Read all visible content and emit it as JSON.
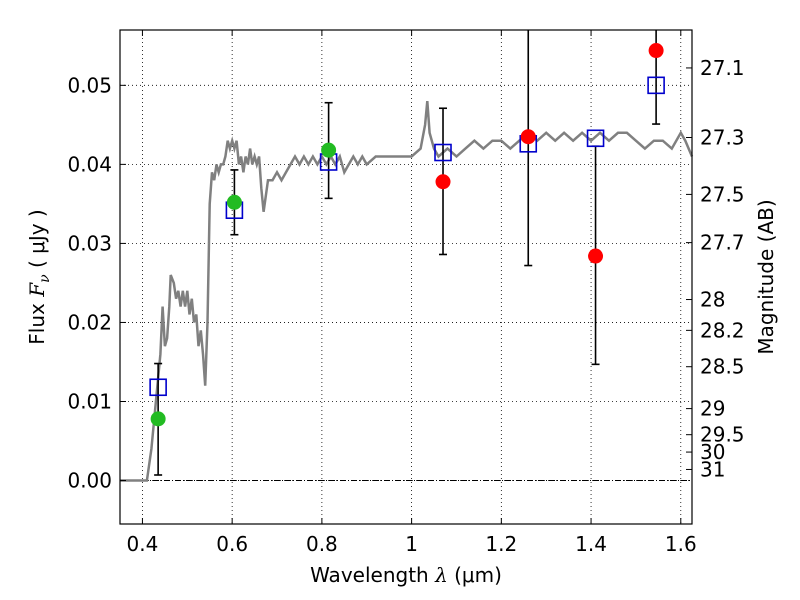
{
  "chart_data": {
    "type": "scatter",
    "xlabel": {
      "prefix": "Wavelength  ",
      "symbol": "λ",
      "unit": " (μm)"
    },
    "ylabel": {
      "prefix": "Flux  ",
      "symbol": "F",
      "subscript": "ν",
      "unit": "  ( μJy )"
    },
    "ylabel_right": "Magnitude (AB)",
    "xlim": [
      0.35,
      1.625
    ],
    "ylim": [
      -0.0055,
      0.057
    ],
    "x_ticks": [
      {
        "value": 0.4,
        "label": "0.4"
      },
      {
        "value": 0.6,
        "label": "0.6"
      },
      {
        "value": 0.8,
        "label": "0.8"
      },
      {
        "value": 1.0,
        "label": "1"
      },
      {
        "value": 1.2,
        "label": "1.2"
      },
      {
        "value": 1.4,
        "label": "1.4"
      },
      {
        "value": 1.6,
        "label": "1.6"
      }
    ],
    "y_ticks": [
      {
        "value": 0.0,
        "label": "0.00"
      },
      {
        "value": 0.01,
        "label": "0.01"
      },
      {
        "value": 0.02,
        "label": "0.02"
      },
      {
        "value": 0.03,
        "label": "0.03"
      },
      {
        "value": 0.04,
        "label": "0.04"
      },
      {
        "value": 0.05,
        "label": "0.05"
      }
    ],
    "right_ticks": [
      {
        "label": "27.1",
        "flux": 0.0522
      },
      {
        "label": "27.3",
        "flux": 0.0434
      },
      {
        "label": "27.5",
        "flux": 0.0362
      },
      {
        "label": "27.7",
        "flux": 0.0301
      },
      {
        "label": "28",
        "flux": 0.0229
      },
      {
        "label": "28.2",
        "flux": 0.019
      },
      {
        "label": "28.5",
        "flux": 0.0144
      },
      {
        "label": "29",
        "flux": 0.0091
      },
      {
        "label": "29.5",
        "flux": 0.0058
      },
      {
        "label": "30",
        "flux": 0.0036
      },
      {
        "label": "31",
        "flux": 0.0014
      }
    ],
    "grid": true,
    "zero_line": 0.0,
    "series": [
      {
        "kind": "line",
        "color": "#808080",
        "points": [
          [
            0.35,
            0.0
          ],
          [
            0.4,
            0.0
          ],
          [
            0.41,
            0.0
          ],
          [
            0.42,
            0.004
          ],
          [
            0.43,
            0.01
          ],
          [
            0.44,
            0.016
          ],
          [
            0.445,
            0.022
          ],
          [
            0.45,
            0.017
          ],
          [
            0.455,
            0.018
          ],
          [
            0.46,
            0.022
          ],
          [
            0.463,
            0.026
          ],
          [
            0.47,
            0.025
          ],
          [
            0.475,
            0.023
          ],
          [
            0.48,
            0.024
          ],
          [
            0.485,
            0.022
          ],
          [
            0.49,
            0.024
          ],
          [
            0.495,
            0.022
          ],
          [
            0.5,
            0.024
          ],
          [
            0.505,
            0.021
          ],
          [
            0.51,
            0.023
          ],
          [
            0.515,
            0.02
          ],
          [
            0.52,
            0.021
          ],
          [
            0.525,
            0.017
          ],
          [
            0.53,
            0.019
          ],
          [
            0.535,
            0.016
          ],
          [
            0.54,
            0.012
          ],
          [
            0.545,
            0.02
          ],
          [
            0.55,
            0.035
          ],
          [
            0.555,
            0.039
          ],
          [
            0.56,
            0.038
          ],
          [
            0.565,
            0.04
          ],
          [
            0.57,
            0.039
          ],
          [
            0.575,
            0.04
          ],
          [
            0.58,
            0.04
          ],
          [
            0.585,
            0.041
          ],
          [
            0.59,
            0.043
          ],
          [
            0.595,
            0.042
          ],
          [
            0.6,
            0.043
          ],
          [
            0.605,
            0.042
          ],
          [
            0.61,
            0.043
          ],
          [
            0.615,
            0.04
          ],
          [
            0.62,
            0.041
          ],
          [
            0.625,
            0.039
          ],
          [
            0.63,
            0.041
          ],
          [
            0.635,
            0.04
          ],
          [
            0.64,
            0.042
          ],
          [
            0.645,
            0.04
          ],
          [
            0.65,
            0.041
          ],
          [
            0.655,
            0.04
          ],
          [
            0.66,
            0.041
          ],
          [
            0.665,
            0.037
          ],
          [
            0.67,
            0.034
          ],
          [
            0.675,
            0.036
          ],
          [
            0.68,
            0.038
          ],
          [
            0.69,
            0.038
          ],
          [
            0.7,
            0.039
          ],
          [
            0.71,
            0.038
          ],
          [
            0.72,
            0.039
          ],
          [
            0.73,
            0.04
          ],
          [
            0.74,
            0.041
          ],
          [
            0.75,
            0.04
          ],
          [
            0.76,
            0.041
          ],
          [
            0.77,
            0.04
          ],
          [
            0.78,
            0.041
          ],
          [
            0.79,
            0.04
          ],
          [
            0.8,
            0.041
          ],
          [
            0.81,
            0.04
          ],
          [
            0.82,
            0.041
          ],
          [
            0.83,
            0.04
          ],
          [
            0.84,
            0.041
          ],
          [
            0.85,
            0.039
          ],
          [
            0.86,
            0.04
          ],
          [
            0.87,
            0.041
          ],
          [
            0.88,
            0.04
          ],
          [
            0.89,
            0.041
          ],
          [
            0.9,
            0.04
          ],
          [
            0.92,
            0.041
          ],
          [
            0.94,
            0.041
          ],
          [
            0.96,
            0.041
          ],
          [
            0.98,
            0.041
          ],
          [
            1.0,
            0.041
          ],
          [
            1.02,
            0.042
          ],
          [
            1.03,
            0.045
          ],
          [
            1.035,
            0.048
          ],
          [
            1.04,
            0.044
          ],
          [
            1.05,
            0.042
          ],
          [
            1.06,
            0.041
          ],
          [
            1.08,
            0.042
          ],
          [
            1.1,
            0.041
          ],
          [
            1.12,
            0.042
          ],
          [
            1.14,
            0.043
          ],
          [
            1.16,
            0.042
          ],
          [
            1.18,
            0.043
          ],
          [
            1.2,
            0.043
          ],
          [
            1.22,
            0.042
          ],
          [
            1.24,
            0.043
          ],
          [
            1.26,
            0.044
          ],
          [
            1.28,
            0.043
          ],
          [
            1.3,
            0.044
          ],
          [
            1.32,
            0.043
          ],
          [
            1.34,
            0.044
          ],
          [
            1.36,
            0.043
          ],
          [
            1.38,
            0.044
          ],
          [
            1.4,
            0.043
          ],
          [
            1.42,
            0.044
          ],
          [
            1.44,
            0.043
          ],
          [
            1.46,
            0.044
          ],
          [
            1.48,
            0.044
          ],
          [
            1.5,
            0.043
          ],
          [
            1.52,
            0.042
          ],
          [
            1.54,
            0.043
          ],
          [
            1.56,
            0.043
          ],
          [
            1.58,
            0.042
          ],
          [
            1.6,
            0.044
          ],
          [
            1.61,
            0.043
          ],
          [
            1.625,
            0.041
          ]
        ]
      },
      {
        "kind": "open-square",
        "color": "#0000cc",
        "points": [
          [
            0.435,
            0.0118
          ],
          [
            0.605,
            0.0342
          ],
          [
            0.815,
            0.0403
          ],
          [
            1.07,
            0.0415
          ],
          [
            1.26,
            0.0426
          ],
          [
            1.41,
            0.0433
          ],
          [
            1.545,
            0.05
          ]
        ]
      },
      {
        "kind": "filled-circle",
        "color": "#22bb22",
        "points": [
          [
            0.435,
            0.0078
          ],
          [
            0.605,
            0.0352
          ],
          [
            0.815,
            0.0418
          ]
        ]
      },
      {
        "kind": "filled-circle",
        "color": "#ff0000",
        "points": [
          [
            1.07,
            0.0378
          ],
          [
            1.26,
            0.0435
          ],
          [
            1.41,
            0.0284
          ],
          [
            1.545,
            0.0544
          ]
        ]
      }
    ],
    "error_bars": [
      {
        "x": 0.435,
        "lo": 0.0007,
        "hi": 0.0148
      },
      {
        "x": 0.605,
        "lo": 0.0311,
        "hi": 0.0393
      },
      {
        "x": 0.815,
        "lo": 0.0357,
        "hi": 0.0478
      },
      {
        "x": 1.07,
        "lo": 0.0286,
        "hi": 0.0471
      },
      {
        "x": 1.26,
        "lo": 0.0272,
        "hi": 0.057
      },
      {
        "x": 1.41,
        "lo": 0.0147,
        "hi": 0.0423
      },
      {
        "x": 1.545,
        "lo": 0.0451,
        "hi": 0.057
      }
    ]
  }
}
